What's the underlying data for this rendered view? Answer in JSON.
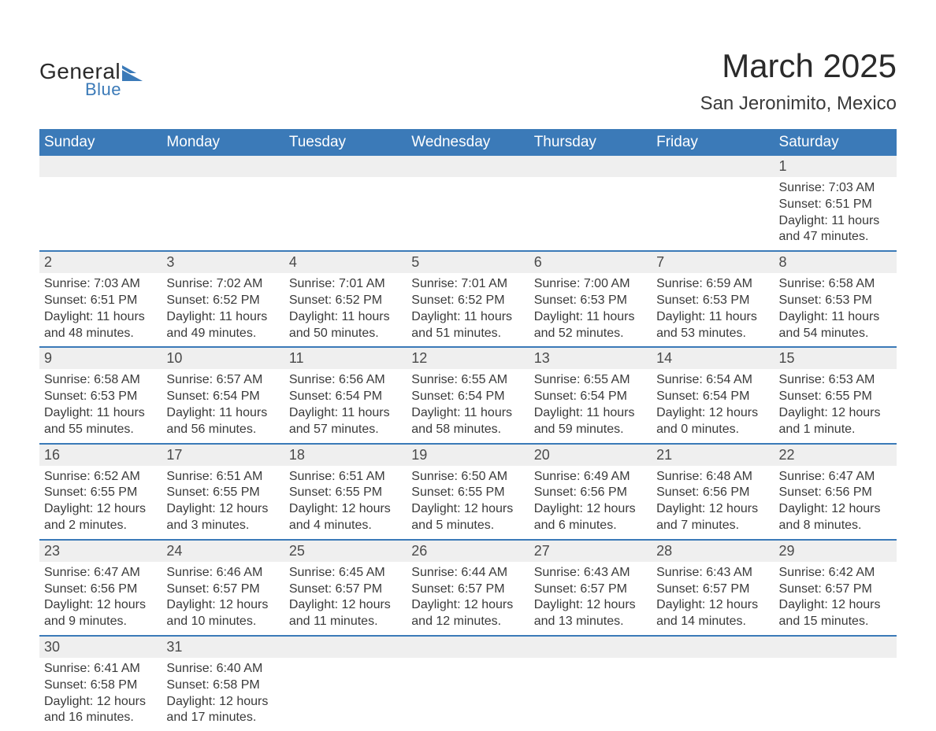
{
  "logo": {
    "text_general": "General",
    "text_blue": "Blue",
    "shape_color": "#3b7ab8"
  },
  "header": {
    "month_title": "March 2025",
    "location": "San Jeronimito, Mexico"
  },
  "colors": {
    "header_bg": "#3b7ab8",
    "header_text": "#ffffff",
    "daynum_bg": "#efefef",
    "text": "#3a3a3a",
    "separator": "#3b7ab8",
    "page_bg": "#ffffff"
  },
  "day_labels": [
    "Sunday",
    "Monday",
    "Tuesday",
    "Wednesday",
    "Thursday",
    "Friday",
    "Saturday"
  ],
  "weeks": [
    {
      "days": [
        null,
        null,
        null,
        null,
        null,
        null,
        {
          "num": "1",
          "sunrise": "Sunrise: 7:03 AM",
          "sunset": "Sunset: 6:51 PM",
          "daylight1": "Daylight: 11 hours",
          "daylight2": "and 47 minutes."
        }
      ]
    },
    {
      "days": [
        {
          "num": "2",
          "sunrise": "Sunrise: 7:03 AM",
          "sunset": "Sunset: 6:51 PM",
          "daylight1": "Daylight: 11 hours",
          "daylight2": "and 48 minutes."
        },
        {
          "num": "3",
          "sunrise": "Sunrise: 7:02 AM",
          "sunset": "Sunset: 6:52 PM",
          "daylight1": "Daylight: 11 hours",
          "daylight2": "and 49 minutes."
        },
        {
          "num": "4",
          "sunrise": "Sunrise: 7:01 AM",
          "sunset": "Sunset: 6:52 PM",
          "daylight1": "Daylight: 11 hours",
          "daylight2": "and 50 minutes."
        },
        {
          "num": "5",
          "sunrise": "Sunrise: 7:01 AM",
          "sunset": "Sunset: 6:52 PM",
          "daylight1": "Daylight: 11 hours",
          "daylight2": "and 51 minutes."
        },
        {
          "num": "6",
          "sunrise": "Sunrise: 7:00 AM",
          "sunset": "Sunset: 6:53 PM",
          "daylight1": "Daylight: 11 hours",
          "daylight2": "and 52 minutes."
        },
        {
          "num": "7",
          "sunrise": "Sunrise: 6:59 AM",
          "sunset": "Sunset: 6:53 PM",
          "daylight1": "Daylight: 11 hours",
          "daylight2": "and 53 minutes."
        },
        {
          "num": "8",
          "sunrise": "Sunrise: 6:58 AM",
          "sunset": "Sunset: 6:53 PM",
          "daylight1": "Daylight: 11 hours",
          "daylight2": "and 54 minutes."
        }
      ]
    },
    {
      "days": [
        {
          "num": "9",
          "sunrise": "Sunrise: 6:58 AM",
          "sunset": "Sunset: 6:53 PM",
          "daylight1": "Daylight: 11 hours",
          "daylight2": "and 55 minutes."
        },
        {
          "num": "10",
          "sunrise": "Sunrise: 6:57 AM",
          "sunset": "Sunset: 6:54 PM",
          "daylight1": "Daylight: 11 hours",
          "daylight2": "and 56 minutes."
        },
        {
          "num": "11",
          "sunrise": "Sunrise: 6:56 AM",
          "sunset": "Sunset: 6:54 PM",
          "daylight1": "Daylight: 11 hours",
          "daylight2": "and 57 minutes."
        },
        {
          "num": "12",
          "sunrise": "Sunrise: 6:55 AM",
          "sunset": "Sunset: 6:54 PM",
          "daylight1": "Daylight: 11 hours",
          "daylight2": "and 58 minutes."
        },
        {
          "num": "13",
          "sunrise": "Sunrise: 6:55 AM",
          "sunset": "Sunset: 6:54 PM",
          "daylight1": "Daylight: 11 hours",
          "daylight2": "and 59 minutes."
        },
        {
          "num": "14",
          "sunrise": "Sunrise: 6:54 AM",
          "sunset": "Sunset: 6:54 PM",
          "daylight1": "Daylight: 12 hours",
          "daylight2": "and 0 minutes."
        },
        {
          "num": "15",
          "sunrise": "Sunrise: 6:53 AM",
          "sunset": "Sunset: 6:55 PM",
          "daylight1": "Daylight: 12 hours",
          "daylight2": "and 1 minute."
        }
      ]
    },
    {
      "days": [
        {
          "num": "16",
          "sunrise": "Sunrise: 6:52 AM",
          "sunset": "Sunset: 6:55 PM",
          "daylight1": "Daylight: 12 hours",
          "daylight2": "and 2 minutes."
        },
        {
          "num": "17",
          "sunrise": "Sunrise: 6:51 AM",
          "sunset": "Sunset: 6:55 PM",
          "daylight1": "Daylight: 12 hours",
          "daylight2": "and 3 minutes."
        },
        {
          "num": "18",
          "sunrise": "Sunrise: 6:51 AM",
          "sunset": "Sunset: 6:55 PM",
          "daylight1": "Daylight: 12 hours",
          "daylight2": "and 4 minutes."
        },
        {
          "num": "19",
          "sunrise": "Sunrise: 6:50 AM",
          "sunset": "Sunset: 6:55 PM",
          "daylight1": "Daylight: 12 hours",
          "daylight2": "and 5 minutes."
        },
        {
          "num": "20",
          "sunrise": "Sunrise: 6:49 AM",
          "sunset": "Sunset: 6:56 PM",
          "daylight1": "Daylight: 12 hours",
          "daylight2": "and 6 minutes."
        },
        {
          "num": "21",
          "sunrise": "Sunrise: 6:48 AM",
          "sunset": "Sunset: 6:56 PM",
          "daylight1": "Daylight: 12 hours",
          "daylight2": "and 7 minutes."
        },
        {
          "num": "22",
          "sunrise": "Sunrise: 6:47 AM",
          "sunset": "Sunset: 6:56 PM",
          "daylight1": "Daylight: 12 hours",
          "daylight2": "and 8 minutes."
        }
      ]
    },
    {
      "days": [
        {
          "num": "23",
          "sunrise": "Sunrise: 6:47 AM",
          "sunset": "Sunset: 6:56 PM",
          "daylight1": "Daylight: 12 hours",
          "daylight2": "and 9 minutes."
        },
        {
          "num": "24",
          "sunrise": "Sunrise: 6:46 AM",
          "sunset": "Sunset: 6:57 PM",
          "daylight1": "Daylight: 12 hours",
          "daylight2": "and 10 minutes."
        },
        {
          "num": "25",
          "sunrise": "Sunrise: 6:45 AM",
          "sunset": "Sunset: 6:57 PM",
          "daylight1": "Daylight: 12 hours",
          "daylight2": "and 11 minutes."
        },
        {
          "num": "26",
          "sunrise": "Sunrise: 6:44 AM",
          "sunset": "Sunset: 6:57 PM",
          "daylight1": "Daylight: 12 hours",
          "daylight2": "and 12 minutes."
        },
        {
          "num": "27",
          "sunrise": "Sunrise: 6:43 AM",
          "sunset": "Sunset: 6:57 PM",
          "daylight1": "Daylight: 12 hours",
          "daylight2": "and 13 minutes."
        },
        {
          "num": "28",
          "sunrise": "Sunrise: 6:43 AM",
          "sunset": "Sunset: 6:57 PM",
          "daylight1": "Daylight: 12 hours",
          "daylight2": "and 14 minutes."
        },
        {
          "num": "29",
          "sunrise": "Sunrise: 6:42 AM",
          "sunset": "Sunset: 6:57 PM",
          "daylight1": "Daylight: 12 hours",
          "daylight2": "and 15 minutes."
        }
      ]
    },
    {
      "days": [
        {
          "num": "30",
          "sunrise": "Sunrise: 6:41 AM",
          "sunset": "Sunset: 6:58 PM",
          "daylight1": "Daylight: 12 hours",
          "daylight2": "and 16 minutes."
        },
        {
          "num": "31",
          "sunrise": "Sunrise: 6:40 AM",
          "sunset": "Sunset: 6:58 PM",
          "daylight1": "Daylight: 12 hours",
          "daylight2": "and 17 minutes."
        },
        null,
        null,
        null,
        null,
        null
      ]
    }
  ]
}
